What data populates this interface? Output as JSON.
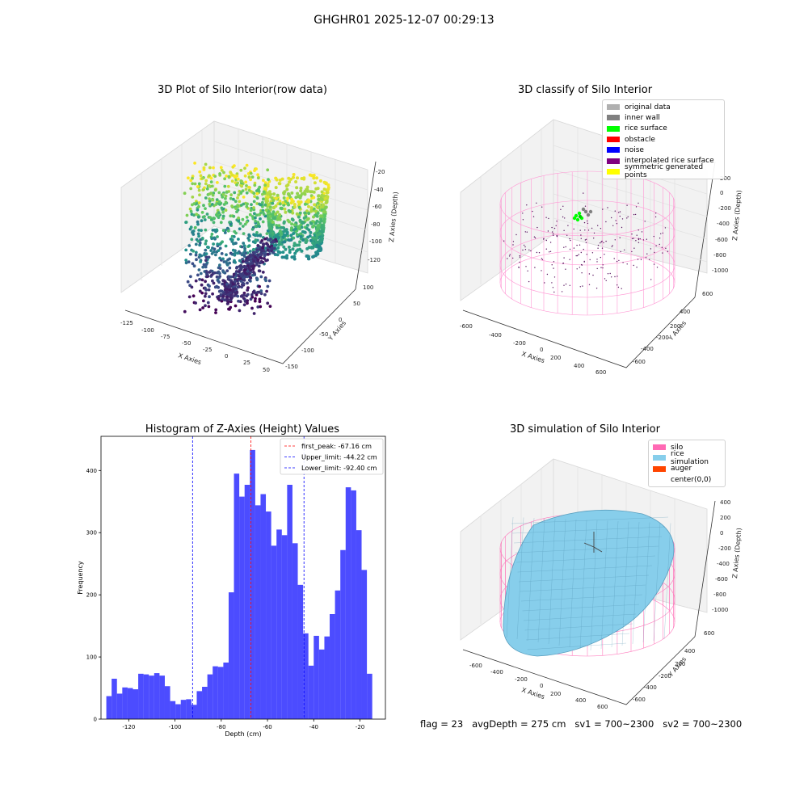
{
  "suptitle": "GHGHR01 2025-12-07 00:29:13",
  "panels": {
    "raw": {
      "title": "3D Plot of Silo Interior(row data)",
      "xlabel": "X Axies",
      "ylabel": "Y Axies",
      "zlabel": "Z Axies (Depth)",
      "xticks": [
        "-125",
        "-100",
        "-75",
        "-50",
        "-25",
        "0",
        "25",
        "50"
      ],
      "yticks": [
        "100",
        "50",
        "0",
        "-50",
        "-100",
        "-150"
      ],
      "zticks": [
        "-20",
        "-40",
        "-60",
        "-80",
        "-100",
        "-120"
      ]
    },
    "classify": {
      "title": "3D classify of Silo Interior",
      "xlabel": "X Axies",
      "ylabel": "Y Axies",
      "zlabel": "Z Axies (Depth)",
      "xticks": [
        "-600",
        "-400",
        "-200",
        "0",
        "200",
        "400",
        "600"
      ],
      "yticks": [
        "600",
        "400",
        "200",
        "0",
        "-200",
        "-400",
        "-600"
      ],
      "zticks": [
        "200",
        "0",
        "-200",
        "-400",
        "-600",
        "-800",
        "-1000"
      ],
      "legend": [
        {
          "label": "original data",
          "color": "#b0b0b0"
        },
        {
          "label": "inner wall",
          "color": "#808080"
        },
        {
          "label": "rice surface",
          "color": "#00ff00"
        },
        {
          "label": "obstacle",
          "color": "#ff0000"
        },
        {
          "label": "noise",
          "color": "#0000ff"
        },
        {
          "label": "interpolated rice surface",
          "color": "#800080"
        },
        {
          "label": "symmetric generated points",
          "color": "#ffff00"
        }
      ]
    },
    "simulation": {
      "title": "3D simulation of Silo Interior",
      "xlabel": "X Axies",
      "ylabel": "Y Axies",
      "zlabel": "Z Axies (Depth)",
      "xticks": [
        "-600",
        "-400",
        "-200",
        "0",
        "200",
        "400",
        "600"
      ],
      "yticks": [
        "600",
        "400",
        "200",
        "0",
        "-200",
        "-400",
        "-600"
      ],
      "zticks": [
        "400",
        "200",
        "0",
        "-200",
        "-400",
        "-600",
        "-800",
        "-1000"
      ],
      "legend": [
        {
          "label": "silo",
          "color": "#ff69b4"
        },
        {
          "label": "rice simulation",
          "color": "#87ceeb"
        },
        {
          "label": "auger",
          "color": "#ff4500"
        },
        {
          "label": "center(0,0)",
          "color": "#ffffff"
        }
      ]
    }
  },
  "footer": "flag = 23   avgDepth = 275 cm   sv1 = 700~2300   sv2 = 700~2300",
  "chart_data": [
    {
      "type": "histogram",
      "title": "Histogram of Z-Axies (Height) Values",
      "xlabel": "Depth (cm)",
      "ylabel": "Frequency",
      "xlim": [
        -132,
        -9
      ],
      "ylim": [
        0,
        455
      ],
      "xticks": [
        -120,
        -100,
        -80,
        -60,
        -40,
        -20
      ],
      "yticks": [
        0,
        100,
        200,
        300,
        400
      ],
      "bar_color": "#0000ff",
      "bins": {
        "start": -129.7,
        "width": 2.3,
        "counts": [
          37,
          65,
          41,
          51,
          50,
          48,
          73,
          72,
          70,
          74,
          70,
          53,
          29,
          24,
          31,
          32,
          23,
          45,
          52,
          72,
          85,
          84,
          91,
          204,
          395,
          358,
          377,
          433,
          344,
          362,
          334,
          279,
          305,
          296,
          377,
          283,
          216,
          138,
          86,
          134,
          112,
          133,
          169,
          207,
          272,
          373,
          368,
          304,
          240,
          73
        ]
      },
      "lines": [
        {
          "label": "first_peak: -67.16 cm",
          "x": -67.16,
          "color": "#ff0000"
        },
        {
          "label": "Upper_limit: -44.22 cm",
          "x": -44.22,
          "color": "#0000ff"
        },
        {
          "label": "Lower_limit: -92.40 cm",
          "x": -92.4,
          "color": "#0000ff"
        }
      ],
      "legend_position": "top-right"
    }
  ]
}
